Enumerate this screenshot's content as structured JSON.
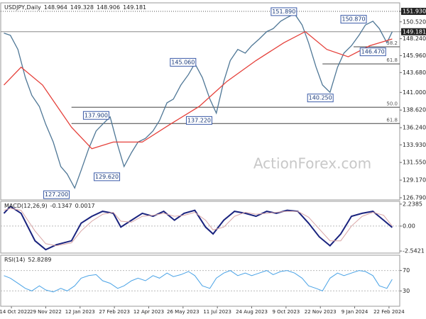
{
  "chart_data": [
    {
      "type": "line",
      "title": "USDJPY,Daily",
      "ohlc": [
        148.964,
        149.328,
        148.906,
        149.181
      ],
      "xlim": [
        -1,
        369
      ],
      "xticks": [
        {
          "value": 7,
          "label": "14 Oct 2022"
        },
        {
          "value": 39,
          "label": "29 Nov 2022"
        },
        {
          "value": 71,
          "label": "12 Jan 2023"
        },
        {
          "value": 103,
          "label": "27 Feb 2023"
        },
        {
          "value": 135,
          "label": "12 Apr 2023"
        },
        {
          "value": 167,
          "label": "26 May 2023"
        },
        {
          "value": 199,
          "label": "11 Jul 2023"
        },
        {
          "value": 231,
          "label": "24 Aug 2023"
        },
        {
          "value": 263,
          "label": "9 Oct 2023"
        },
        {
          "value": 295,
          "label": "22 Nov 2023"
        },
        {
          "value": 327,
          "label": "9 Jan 2024"
        },
        {
          "value": 359,
          "label": "22 Feb 2024"
        }
      ],
      "ylim": [
        126.5,
        153.08
      ],
      "yticks": [
        {
          "value": 151.93,
          "label": "151.930"
        },
        {
          "value": 150.52,
          "label": "150.520"
        },
        149.181,
        {
          "value": 148.24,
          "label": "148.240"
        },
        {
          "value": 145.96,
          "label": "145.960"
        },
        {
          "value": 143.68,
          "label": "143.680"
        },
        {
          "value": 141,
          "label": "141.000"
        },
        {
          "value": 138.62,
          "label": "138.620"
        },
        {
          "value": 136.24,
          "label": "136.240"
        },
        {
          "value": 133.93,
          "label": "133.930"
        },
        {
          "value": 131.55,
          "label": "131.550"
        },
        {
          "value": 129.17,
          "label": "129.170"
        },
        {
          "value": 126.79,
          "label": "126.790"
        }
      ],
      "hlines": [
        151.93,
        149.181
      ],
      "series": [
        {
          "name": "USDJPY",
          "color": "#4f7796",
          "x": [
            0,
            6,
            13,
            20,
            26,
            33,
            39,
            46,
            53,
            59,
            66,
            72,
            79,
            86,
            92,
            99,
            106,
            112,
            119,
            125,
            132,
            139,
            145,
            152,
            158,
            165,
            172,
            178,
            185,
            192,
            198,
            205,
            211,
            218,
            225,
            231,
            238,
            245,
            251,
            258,
            264,
            271,
            278,
            284,
            291,
            297,
            304,
            311,
            317,
            324,
            331,
            337,
            344,
            350,
            357,
            362
          ],
          "values": [
            149.0,
            148.7,
            146.8,
            143.0,
            140.6,
            139.1,
            136.7,
            134.3,
            131.0,
            130.0,
            128.1,
            130.5,
            133.4,
            135.8,
            136.7,
            137.7,
            133.9,
            131.0,
            132.9,
            134.3,
            134.8,
            135.8,
            137.2,
            139.6,
            140.1,
            142.0,
            143.4,
            144.9,
            143.0,
            140.1,
            138.2,
            142.5,
            145.3,
            146.8,
            146.3,
            147.3,
            148.2,
            149.2,
            149.6,
            150.6,
            151.1,
            151.6,
            150.1,
            147.7,
            144.4,
            142.0,
            141.0,
            144.4,
            146.3,
            147.3,
            148.7,
            150.1,
            150.6,
            149.6,
            147.7,
            149.181
          ]
        },
        {
          "name": "MA",
          "color": "#e5403a",
          "x": [
            0,
            16,
            36,
            63,
            82,
            102,
            129,
            155,
            182,
            208,
            235,
            261,
            281,
            301,
            321,
            341,
            362
          ],
          "values": [
            142.0,
            144.4,
            142.0,
            136.3,
            133.4,
            134.3,
            134.3,
            136.7,
            139.1,
            142.5,
            145.3,
            147.7,
            149.2,
            146.8,
            145.8,
            147.3,
            148.2
          ]
        }
      ],
      "annotations": [
        {
          "label": "151.890",
          "value": 151.89,
          "x": 261
        },
        {
          "label": "150.870",
          "value": 150.87,
          "x": 326
        },
        {
          "label": "145.060",
          "value": 145.06,
          "x": 167
        },
        {
          "label": "146.470",
          "value": 146.47,
          "x": 344
        },
        {
          "label": "140.250",
          "value": 140.25,
          "x": 295
        },
        {
          "label": "137.900",
          "value": 137.9,
          "x": 86
        },
        {
          "label": "137.220",
          "value": 137.22,
          "x": 182
        },
        {
          "label": "129.620",
          "value": 129.62,
          "x": 96
        },
        {
          "label": "127.200",
          "value": 127.2,
          "x": 49
        }
      ],
      "fib": [
        {
          "label": "38.2",
          "value": 147.15,
          "x": 326
        },
        {
          "label": "61.8",
          "value": 144.85,
          "x": 297
        },
        {
          "label": "50.0",
          "value": 139.0,
          "x": 63
        },
        {
          "label": "61.8",
          "value": 136.8,
          "x": 63
        }
      ],
      "watermark": "ActionForex.com"
    },
    {
      "type": "line",
      "title": "MACD(12,26,9)",
      "xlim": [
        -1,
        369
      ],
      "ylim": [
        -2.75,
        2.52
      ],
      "yticks": [
        2.2385,
        {
          "value": 0,
          "label": "0.00"
        },
        -2.5421
      ],
      "series": [
        {
          "name": "MACD",
          "color": "#1a237e",
          "width": 2,
          "x": [
            0,
            6,
            16,
            29,
            39,
            49,
            63,
            72,
            82,
            92,
            102,
            109,
            119,
            129,
            139,
            149,
            159,
            168,
            178,
            188,
            195,
            205,
            215,
            225,
            235,
            245,
            254,
            264,
            274,
            284,
            294,
            304,
            314,
            324,
            334,
            344,
            354,
            362
          ],
          "values": [
            1.3,
            2.0,
            1.3,
            -1.5,
            -2.4,
            -1.9,
            -1.5,
            0.3,
            1.0,
            1.5,
            1.3,
            -0.1,
            0.6,
            1.3,
            1.0,
            1.5,
            0.6,
            1.3,
            1.6,
            -0.1,
            -0.8,
            0.6,
            1.5,
            1.3,
            1.0,
            1.5,
            1.3,
            1.6,
            1.5,
            0.3,
            -1.1,
            -2.0,
            -0.8,
            1.0,
            1.3,
            1.5,
            0.6,
            -0.1347
          ]
        },
        {
          "name": "Signal",
          "color": "#d9a6a6",
          "width": 1,
          "x": [
            0,
            6,
            16,
            29,
            39,
            49,
            63,
            72,
            82,
            92,
            102,
            109,
            119,
            129,
            139,
            149,
            159,
            168,
            178,
            188,
            195,
            205,
            215,
            225,
            235,
            245,
            254,
            264,
            274,
            284,
            294,
            304,
            314,
            324,
            334,
            344,
            354,
            362
          ],
          "values": [
            1.6,
            1.8,
            1.6,
            -0.5,
            -1.8,
            -2.0,
            -1.7,
            -0.5,
            0.5,
            1.2,
            1.4,
            0.5,
            0.4,
            1.0,
            1.1,
            1.3,
            1.0,
            1.1,
            1.4,
            0.6,
            -0.4,
            -0.1,
            1.0,
            1.4,
            1.2,
            1.3,
            1.4,
            1.5,
            1.5,
            0.9,
            -0.3,
            -1.5,
            -1.5,
            0.0,
            1.0,
            1.4,
            1.1,
            0.0017
          ]
        }
      ]
    },
    {
      "type": "line",
      "title": "RSI(14)",
      "xlim": [
        -1,
        369
      ],
      "ylim": [
        0,
        100
      ],
      "yticks": [
        70,
        30
      ],
      "series": [
        {
          "name": "RSI",
          "color": "#4aa3e6",
          "width": 1,
          "x": [
            0,
            6,
            13,
            20,
            26,
            33,
            39,
            46,
            53,
            59,
            66,
            72,
            79,
            86,
            92,
            99,
            106,
            112,
            119,
            125,
            132,
            139,
            145,
            152,
            158,
            165,
            172,
            178,
            185,
            192,
            198,
            205,
            211,
            218,
            225,
            231,
            238,
            245,
            251,
            258,
            264,
            271,
            278,
            284,
            291,
            297,
            304,
            311,
            317,
            324,
            331,
            337,
            344,
            350,
            357,
            362
          ],
          "values": [
            60,
            55,
            45,
            35,
            30,
            40,
            32,
            28,
            35,
            30,
            40,
            55,
            60,
            62,
            50,
            45,
            35,
            40,
            50,
            55,
            50,
            60,
            55,
            65,
            58,
            62,
            68,
            60,
            40,
            35,
            55,
            65,
            70,
            60,
            65,
            60,
            65,
            70,
            62,
            68,
            70,
            65,
            55,
            40,
            35,
            30,
            55,
            65,
            60,
            65,
            70,
            68,
            60,
            40,
            35,
            52.8289
          ]
        }
      ]
    }
  ]
}
